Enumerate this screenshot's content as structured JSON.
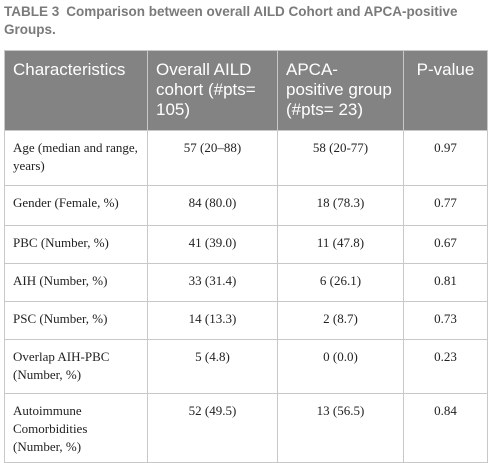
{
  "caption": {
    "label": "TABLE 3",
    "text": "Comparison between overall AILD Cohort and APCA-positive Groups."
  },
  "table": {
    "headers": [
      "Characteristics",
      "Overall AILD cohort (#pts= 105)",
      "APCA-positive group (#pts= 23)",
      "P-value"
    ],
    "rows": [
      [
        "Age (median and range, years)",
        "57 (20–88)",
        "58 (20-77)",
        "0.97"
      ],
      [
        "Gender (Female, %)",
        "84 (80.0)",
        "18 (78.3)",
        "0.77"
      ],
      [
        "PBC (Number, %)",
        "41 (39.0)",
        "11 (47.8)",
        "0.67"
      ],
      [
        "AIH (Number, %)",
        "33 (31.4)",
        "6 (26.1)",
        "0.81"
      ],
      [
        "PSC (Number, %)",
        "14 (13.3)",
        "2 (8.7)",
        "0.73"
      ],
      [
        "Overlap AIH-PBC (Number, %)",
        "5 (4.8)",
        "0 (0.0)",
        "0.23"
      ],
      [
        "Autoimmune Comorbidities (Number, %)",
        "52 (49.5)",
        "13 (56.5)",
        "0.84"
      ]
    ]
  }
}
